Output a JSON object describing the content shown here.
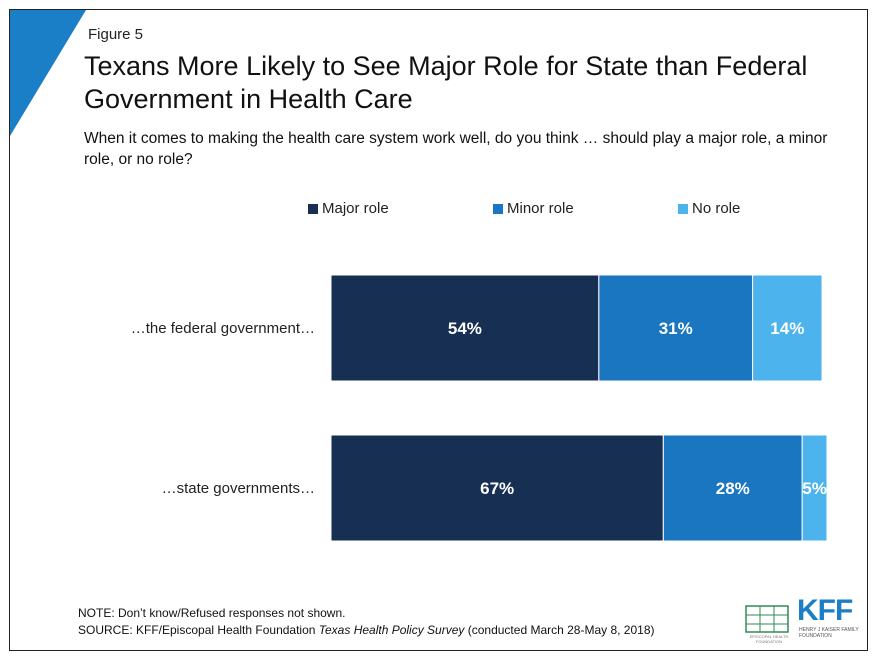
{
  "figure_label": "Figure 5",
  "title": "Texans More Likely to See Major Role for State than Federal Government in Health Care",
  "subtitle": "When it comes to making the health care system work well, do you think … should play a major role, a minor role, or no role?",
  "colors": {
    "major": "#172f52",
    "minor": "#1b76c2",
    "none": "#4db3ec",
    "accent": "#1a7fc7"
  },
  "chart_data": {
    "type": "bar",
    "orientation": "horizontal",
    "stacked": true,
    "categories": [
      "…the federal government…",
      "…state governments…"
    ],
    "series": [
      {
        "name": "Major role",
        "values": [
          54,
          67
        ],
        "labels": [
          "54%",
          "67%"
        ]
      },
      {
        "name": "Minor role",
        "values": [
          31,
          28
        ],
        "labels": [
          "31%",
          "28%"
        ]
      },
      {
        "name": "No role",
        "values": [
          14,
          5
        ],
        "labels": [
          "14%",
          "5%"
        ]
      }
    ],
    "xlim": [
      0,
      100
    ],
    "grid": false,
    "legend_position": "top"
  },
  "note": {
    "line1": "NOTE: Don’t know/Refused responses not shown.",
    "source_prefix": "SOURCE: KFF/Episcopal Health Foundation ",
    "source_italic": "Texas Health Policy Survey",
    "source_suffix": " (conducted March 28-May 8, 2018)"
  },
  "logos": {
    "kff": "KFF",
    "kff_sub": "HENRY J KAISER FAMILY FOUNDATION",
    "ehf_sub": "EPISCOPAL HEALTH FOUNDATION"
  }
}
